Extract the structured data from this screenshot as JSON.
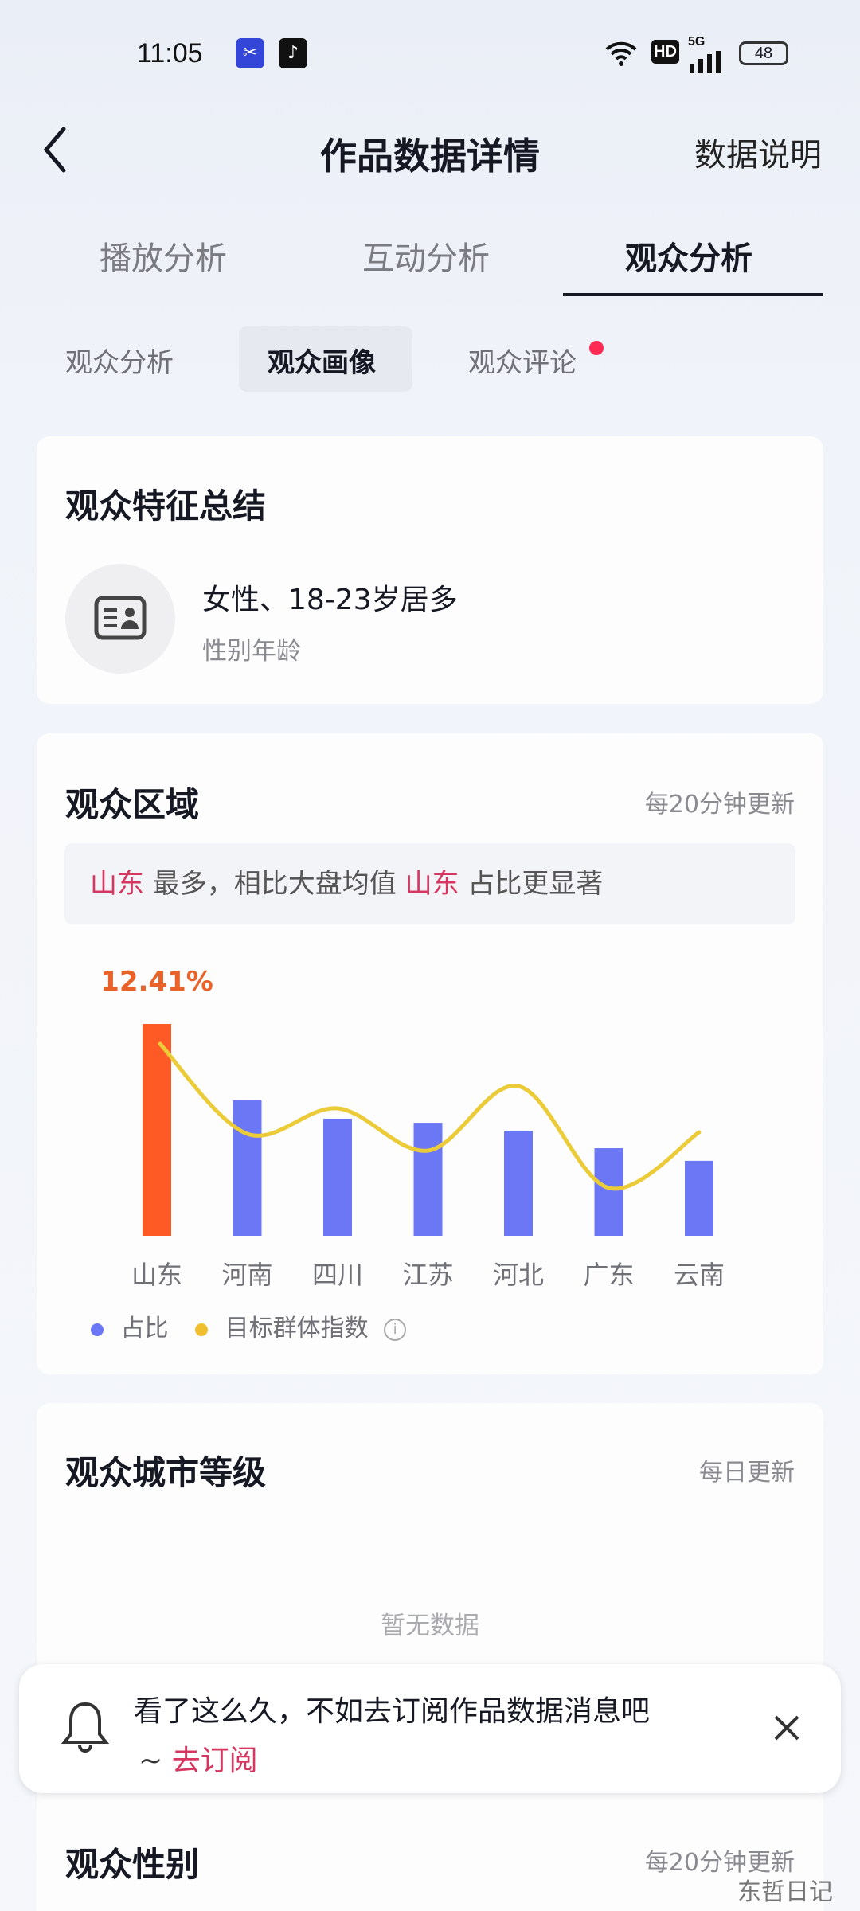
{
  "status_bar": {
    "time": "11:05",
    "hd": "HD",
    "network": "5G",
    "battery": "48"
  },
  "nav": {
    "title": "作品数据详情",
    "right_link": "数据说明"
  },
  "tabs": [
    {
      "label": "播放分析"
    },
    {
      "label": "互动分析"
    },
    {
      "label": "观众分析",
      "active": true
    }
  ],
  "sub_tabs": [
    {
      "label": "观众分析"
    },
    {
      "label": "观众画像",
      "active": true
    },
    {
      "label": "观众评论",
      "badge": true
    }
  ],
  "summary": {
    "title": "观众特征总结",
    "headline": "女性、18-23岁居多",
    "caption": "性别年龄",
    "icon": "id-card-icon"
  },
  "region": {
    "title": "观众区域",
    "update": "每20分钟更新",
    "callout": {
      "highlight1": "山东",
      "text1": " 最多，相比大盘均值 ",
      "highlight2": "山东",
      "text2": " 占比更显著"
    },
    "legend": [
      {
        "label": "占比",
        "color": "#6b77f5"
      },
      {
        "label": "目标群体指数",
        "color": "#f0bf2e"
      }
    ]
  },
  "chart_data": {
    "type": "bar",
    "categories": [
      "山东",
      "河南",
      "四川",
      "江苏",
      "河北",
      "广东",
      "云南"
    ],
    "series": [
      {
        "name": "占比",
        "unit": "%",
        "values": [
          12.41,
          7.93,
          6.86,
          6.62,
          6.16,
          5.13,
          4.39
        ]
      },
      {
        "name": "目标群体指数",
        "type": "line",
        "values": [
          241,
          128,
          160,
          107,
          188,
          60,
          130
        ]
      }
    ],
    "data_label": "12.41%",
    "highlight_color": "#fe5a25",
    "bar_color": "#6b77f5",
    "line_color": "#eccb38",
    "grid": false,
    "legend_position": "bottom-left"
  },
  "city_level": {
    "title": "观众城市等级",
    "update": "每日更新",
    "empty": "暂无数据"
  },
  "toast": {
    "line1": "看了这么久，不如去订阅作品数据消息吧",
    "prefix": "~",
    "link": "去订阅"
  },
  "gender": {
    "title": "观众性别",
    "update": "每20分钟更新"
  },
  "watermark": "东哲日记"
}
